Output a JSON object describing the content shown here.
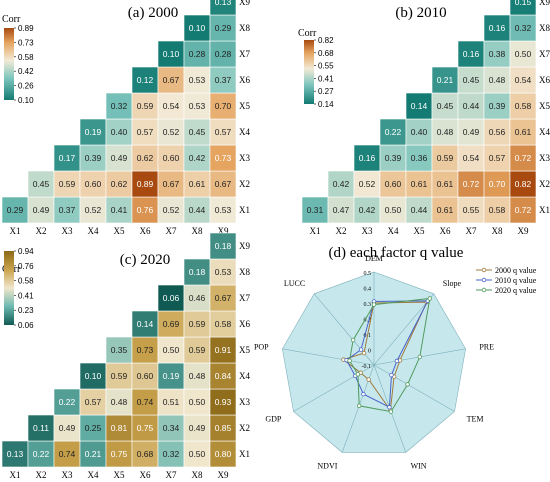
{
  "chart_data": [
    {
      "id": "p2000",
      "type": "heatmap",
      "title": "(a) 2000",
      "colorbar_title": "Corr",
      "colorbar_ticks": [
        "0.89",
        "0.73",
        "0.58",
        "0.42",
        "0.26",
        "0.10"
      ],
      "vmin": 0.1,
      "vmax": 0.89,
      "x_labels": [
        "X1",
        "X2",
        "X3",
        "X4",
        "X5",
        "X6",
        "X7",
        "X8",
        "X9"
      ],
      "y_labels": [
        "X1",
        "X2",
        "X3",
        "X4",
        "X5",
        "X6",
        "X7",
        "X8",
        "X9"
      ],
      "red_labels": [
        "X2",
        "X9"
      ],
      "rows": [
        {
          "label": "X1",
          "values": [
            0.29,
            0.49,
            0.37,
            0.52,
            0.41,
            0.76,
            0.52,
            0.44,
            0.53
          ]
        },
        {
          "label": "X2",
          "values": [
            0.45,
            0.59,
            0.6,
            0.62,
            0.89,
            0.67,
            0.61,
            0.67
          ]
        },
        {
          "label": "X3",
          "values": [
            0.17,
            0.39,
            0.49,
            0.62,
            0.6,
            0.42,
            0.73
          ]
        },
        {
          "label": "X4",
          "values": [
            0.19,
            0.4,
            0.57,
            0.52,
            0.45,
            0.57
          ]
        },
        {
          "label": "X5",
          "values": [
            0.32,
            0.59,
            0.54,
            0.53,
            0.7
          ]
        },
        {
          "label": "X6",
          "values": [
            0.12,
            0.67,
            0.53,
            0.37
          ]
        },
        {
          "label": "X7",
          "values": [
            0.1,
            0.28,
            0.28
          ]
        },
        {
          "label": "X8",
          "values": [
            0.1,
            0.29
          ]
        },
        {
          "label": "X9",
          "values": [
            0.13
          ]
        }
      ]
    },
    {
      "id": "p2010",
      "type": "heatmap",
      "title": "(b) 2010",
      "colorbar_title": "Corr",
      "colorbar_ticks": [
        "0.82",
        "0.68",
        "0.55",
        "0.41",
        "0.27",
        "0.14"
      ],
      "vmin": 0.14,
      "vmax": 0.82,
      "x_labels": [
        "X1",
        "X2",
        "X3",
        "X4",
        "X5",
        "X6",
        "X7",
        "X8",
        "X9"
      ],
      "y_labels": [
        "X1",
        "X2",
        "X3",
        "X4",
        "X5",
        "X6",
        "X7",
        "X8",
        "X9"
      ],
      "red_labels": [],
      "rows": [
        {
          "label": "X1",
          "values": [
            0.31,
            0.47,
            0.42,
            0.5,
            0.44,
            0.61,
            0.55,
            0.58,
            0.72
          ]
        },
        {
          "label": "X2",
          "values": [
            0.42,
            0.52,
            0.6,
            0.61,
            0.61,
            0.72,
            0.7,
            0.82
          ]
        },
        {
          "label": "X3",
          "values": [
            0.16,
            0.39,
            0.36,
            0.59,
            0.54,
            0.57,
            0.72
          ]
        },
        {
          "label": "X4",
          "values": [
            0.22,
            0.4,
            0.48,
            0.49,
            0.56,
            0.61
          ]
        },
        {
          "label": "X5",
          "values": [
            0.14,
            0.45,
            0.44,
            0.39,
            0.58
          ]
        },
        {
          "label": "X6",
          "values": [
            0.21,
            0.45,
            0.48,
            0.54
          ]
        },
        {
          "label": "X7",
          "values": [
            0.16,
            0.38,
            0.5
          ]
        },
        {
          "label": "X8",
          "values": [
            0.16,
            0.32
          ]
        },
        {
          "label": "X9",
          "values": [
            0.15
          ]
        }
      ]
    },
    {
      "id": "p2020",
      "type": "heatmap",
      "title": "(c) 2020",
      "colorbar_title": "Corr",
      "colorbar_ticks": [
        "0.94",
        "0.76",
        "0.58",
        "0.41",
        "0.23",
        "0.06"
      ],
      "vmin": 0.06,
      "vmax": 0.94,
      "x_labels": [
        "X1",
        "X2",
        "X3",
        "X4",
        "X5",
        "X6",
        "X7",
        "X8",
        "X9"
      ],
      "y_labels": [
        "X1",
        "X2",
        "X3",
        "X4",
        "X5",
        "X6",
        "X7",
        "X8",
        "X9"
      ],
      "red_labels": [
        "X3",
        "X5",
        "X4"
      ],
      "rows": [
        {
          "label": "X1",
          "values": [
            0.13,
            0.22,
            0.74,
            0.21,
            0.75,
            0.68,
            0.32,
            0.5,
            0.8
          ]
        },
        {
          "label": "X2",
          "values": [
            0.11,
            0.49,
            0.25,
            0.81,
            0.75,
            0.34,
            0.49,
            0.85
          ]
        },
        {
          "label": "X3",
          "values": [
            0.22,
            0.57,
            0.48,
            0.74,
            0.51,
            0.5,
            0.93
          ]
        },
        {
          "label": "X4",
          "values": [
            0.1,
            0.59,
            0.6,
            0.19,
            0.48,
            0.84
          ]
        },
        {
          "label": "X5",
          "values": [
            0.35,
            0.73,
            0.5,
            0.59,
            0.91
          ]
        },
        {
          "label": "X6",
          "values": [
            0.14,
            0.69,
            0.59,
            0.58
          ]
        },
        {
          "label": "X7",
          "values": [
            0.06,
            0.46,
            0.67
          ]
        },
        {
          "label": "X8",
          "values": [
            0.18,
            0.53
          ]
        },
        {
          "label": "X9",
          "values": [
            0.18
          ]
        }
      ]
    },
    {
      "id": "radar",
      "type": "radar",
      "title": "(d) each factor q value",
      "axes": [
        "DEM",
        "Slope",
        "PRE",
        "TEM",
        "WIN",
        "NDVI",
        "GDP",
        "POP",
        "LUCC"
      ],
      "ticks": [
        "0.5",
        "0.4",
        "0.3",
        "0.2",
        "0.1",
        "0",
        "-0.1"
      ],
      "rmin": -0.1,
      "rmax": 0.5,
      "series": [
        {
          "name": "2000 q value",
          "color": "#a07a3c",
          "values": [
            0.3,
            0.43,
            0.07,
            0.05,
            0.21,
            0.0,
            0.0,
            0.1,
            0.0
          ]
        },
        {
          "name": "2010 q value",
          "color": "#4a63c8",
          "values": [
            0.31,
            0.44,
            0.05,
            0.03,
            0.19,
            0.1,
            0.04,
            0.08,
            0.03
          ]
        },
        {
          "name": "2020 q value",
          "color": "#4f9a5c",
          "values": [
            0.29,
            0.46,
            0.2,
            0.15,
            0.22,
            0.18,
            0.02,
            0.06,
            0.11
          ]
        }
      ]
    }
  ]
}
